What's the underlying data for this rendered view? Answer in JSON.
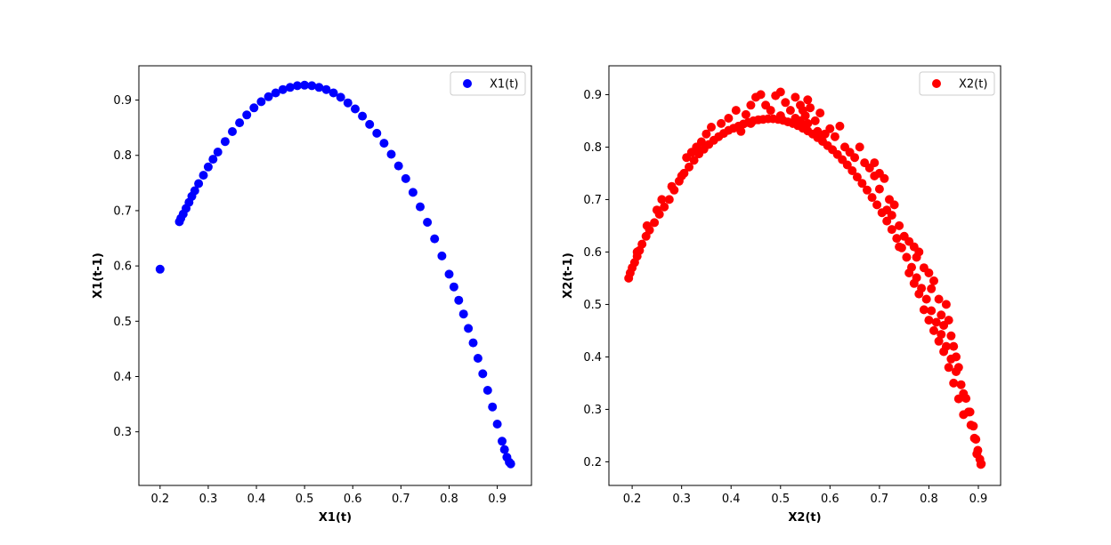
{
  "chart_data": [
    {
      "type": "scatter",
      "color": "#0000ff",
      "xlabel": "X1(t)",
      "ylabel": "X1(t-1)",
      "xlim": [
        0.156,
        0.971
      ],
      "ylim": [
        0.203,
        0.962
      ],
      "xticks": [
        "0.2",
        "0.3",
        "0.4",
        "0.5",
        "0.6",
        "0.7",
        "0.8",
        "0.9"
      ],
      "yticks": [
        "0.3",
        "0.4",
        "0.5",
        "0.6",
        "0.7",
        "0.8",
        "0.9"
      ],
      "legend": {
        "label": "X1(t)",
        "position": "upper right"
      },
      "grid": false,
      "series": [
        {
          "name": "X1(t)",
          "points": [
            [
              0.2,
              0.594
            ],
            [
              0.24,
              0.68
            ],
            [
              0.243,
              0.686
            ],
            [
              0.248,
              0.694
            ],
            [
              0.254,
              0.704
            ],
            [
              0.26,
              0.715
            ],
            [
              0.266,
              0.726
            ],
            [
              0.272,
              0.736
            ],
            [
              0.28,
              0.749
            ],
            [
              0.29,
              0.764
            ],
            [
              0.3,
              0.779
            ],
            [
              0.31,
              0.793
            ],
            [
              0.32,
              0.806
            ],
            [
              0.335,
              0.825
            ],
            [
              0.35,
              0.843
            ],
            [
              0.365,
              0.859
            ],
            [
              0.38,
              0.873
            ],
            [
              0.395,
              0.886
            ],
            [
              0.41,
              0.897
            ],
            [
              0.425,
              0.906
            ],
            [
              0.44,
              0.913
            ],
            [
              0.455,
              0.919
            ],
            [
              0.47,
              0.923
            ],
            [
              0.485,
              0.926
            ],
            [
              0.5,
              0.927
            ],
            [
              0.515,
              0.926
            ],
            [
              0.53,
              0.923
            ],
            [
              0.545,
              0.919
            ],
            [
              0.56,
              0.913
            ],
            [
              0.575,
              0.905
            ],
            [
              0.59,
              0.895
            ],
            [
              0.605,
              0.884
            ],
            [
              0.62,
              0.871
            ],
            [
              0.635,
              0.856
            ],
            [
              0.65,
              0.84
            ],
            [
              0.665,
              0.822
            ],
            [
              0.68,
              0.802
            ],
            [
              0.695,
              0.781
            ],
            [
              0.71,
              0.758
            ],
            [
              0.725,
              0.733
            ],
            [
              0.74,
              0.707
            ],
            [
              0.755,
              0.679
            ],
            [
              0.77,
              0.649
            ],
            [
              0.785,
              0.618
            ],
            [
              0.8,
              0.585
            ],
            [
              0.81,
              0.562
            ],
            [
              0.82,
              0.538
            ],
            [
              0.83,
              0.513
            ],
            [
              0.84,
              0.487
            ],
            [
              0.85,
              0.461
            ],
            [
              0.86,
              0.433
            ],
            [
              0.87,
              0.405
            ],
            [
              0.88,
              0.375
            ],
            [
              0.89,
              0.345
            ],
            [
              0.9,
              0.314
            ],
            [
              0.91,
              0.283
            ],
            [
              0.915,
              0.268
            ],
            [
              0.92,
              0.254
            ],
            [
              0.925,
              0.245
            ],
            [
              0.928,
              0.242
            ]
          ]
        }
      ]
    },
    {
      "type": "scatter",
      "color": "#ff0000",
      "xlabel": "X2(t)",
      "ylabel": "X2(t-1)",
      "xlim": [
        0.153,
        0.945
      ],
      "ylim": [
        0.155,
        0.955
      ],
      "xticks": [
        "0.2",
        "0.3",
        "0.4",
        "0.5",
        "0.6",
        "0.7",
        "0.8",
        "0.9"
      ],
      "yticks": [
        "0.2",
        "0.3",
        "0.4",
        "0.5",
        "0.6",
        "0.7",
        "0.8",
        "0.9"
      ],
      "legend": {
        "label": "X2(t)",
        "position": "upper right"
      },
      "grid": false,
      "series": [
        {
          "name": "X2(t)",
          "points": [
            [
              0.193,
              0.55
            ],
            [
              0.196,
              0.56
            ],
            [
              0.2,
              0.57
            ],
            [
              0.205,
              0.58
            ],
            [
              0.21,
              0.592
            ],
            [
              0.215,
              0.603
            ],
            [
              0.22,
              0.615
            ],
            [
              0.228,
              0.63
            ],
            [
              0.235,
              0.642
            ],
            [
              0.245,
              0.656
            ],
            [
              0.255,
              0.672
            ],
            [
              0.265,
              0.686
            ],
            [
              0.275,
              0.7
            ],
            [
              0.285,
              0.718
            ],
            [
              0.295,
              0.735
            ],
            [
              0.305,
              0.75
            ],
            [
              0.315,
              0.762
            ],
            [
              0.325,
              0.775
            ],
            [
              0.335,
              0.787
            ],
            [
              0.345,
              0.796
            ],
            [
              0.355,
              0.805
            ],
            [
              0.365,
              0.813
            ],
            [
              0.375,
              0.82
            ],
            [
              0.385,
              0.826
            ],
            [
              0.395,
              0.832
            ],
            [
              0.405,
              0.836
            ],
            [
              0.415,
              0.84
            ],
            [
              0.425,
              0.844
            ],
            [
              0.435,
              0.847
            ],
            [
              0.445,
              0.85
            ],
            [
              0.455,
              0.852
            ],
            [
              0.465,
              0.853
            ],
            [
              0.475,
              0.854
            ],
            [
              0.485,
              0.854
            ],
            [
              0.495,
              0.853
            ],
            [
              0.505,
              0.851
            ],
            [
              0.515,
              0.848
            ],
            [
              0.525,
              0.845
            ],
            [
              0.535,
              0.841
            ],
            [
              0.545,
              0.836
            ],
            [
              0.555,
              0.831
            ],
            [
              0.565,
              0.825
            ],
            [
              0.575,
              0.818
            ],
            [
              0.585,
              0.811
            ],
            [
              0.595,
              0.803
            ],
            [
              0.605,
              0.795
            ],
            [
              0.615,
              0.786
            ],
            [
              0.625,
              0.776
            ],
            [
              0.635,
              0.766
            ],
            [
              0.645,
              0.755
            ],
            [
              0.655,
              0.743
            ],
            [
              0.665,
              0.731
            ],
            [
              0.675,
              0.718
            ],
            [
              0.685,
              0.704
            ],
            [
              0.695,
              0.69
            ],
            [
              0.705,
              0.675
            ],
            [
              0.715,
              0.659
            ],
            [
              0.725,
              0.643
            ],
            [
              0.735,
              0.626
            ],
            [
              0.745,
              0.608
            ],
            [
              0.755,
              0.59
            ],
            [
              0.765,
              0.571
            ],
            [
              0.775,
              0.551
            ],
            [
              0.785,
              0.531
            ],
            [
              0.795,
              0.51
            ],
            [
              0.805,
              0.488
            ],
            [
              0.815,
              0.466
            ],
            [
              0.825,
              0.443
            ],
            [
              0.835,
              0.42
            ],
            [
              0.845,
              0.396
            ],
            [
              0.855,
              0.372
            ],
            [
              0.865,
              0.347
            ],
            [
              0.875,
              0.321
            ],
            [
              0.883,
              0.295
            ],
            [
              0.89,
              0.268
            ],
            [
              0.895,
              0.243
            ],
            [
              0.899,
              0.222
            ],
            [
              0.903,
              0.205
            ],
            [
              0.906,
              0.196
            ],
            [
              0.3,
              0.745
            ],
            [
              0.31,
              0.78
            ],
            [
              0.33,
              0.8
            ],
            [
              0.35,
              0.825
            ],
            [
              0.36,
              0.838
            ],
            [
              0.38,
              0.845
            ],
            [
              0.395,
              0.855
            ],
            [
              0.41,
              0.87
            ],
            [
              0.43,
              0.862
            ],
            [
              0.44,
              0.88
            ],
            [
              0.45,
              0.895
            ],
            [
              0.46,
              0.9
            ],
            [
              0.47,
              0.88
            ],
            [
              0.48,
              0.87
            ],
            [
              0.49,
              0.898
            ],
            [
              0.5,
              0.905
            ],
            [
              0.51,
              0.885
            ],
            [
              0.52,
              0.87
            ],
            [
              0.53,
              0.895
            ],
            [
              0.54,
              0.88
            ],
            [
              0.55,
              0.86
            ],
            [
              0.555,
              0.89
            ],
            [
              0.56,
              0.875
            ],
            [
              0.57,
              0.85
            ],
            [
              0.58,
              0.865
            ],
            [
              0.6,
              0.835
            ],
            [
              0.61,
              0.82
            ],
            [
              0.62,
              0.84
            ],
            [
              0.64,
              0.79
            ],
            [
              0.66,
              0.8
            ],
            [
              0.67,
              0.77
            ],
            [
              0.68,
              0.76
            ],
            [
              0.69,
              0.745
            ],
            [
              0.7,
              0.72
            ],
            [
              0.71,
              0.74
            ],
            [
              0.72,
              0.7
            ],
            [
              0.73,
              0.69
            ],
            [
              0.74,
              0.65
            ],
            [
              0.75,
              0.63
            ],
            [
              0.76,
              0.62
            ],
            [
              0.77,
              0.61
            ],
            [
              0.775,
              0.59
            ],
            [
              0.78,
              0.6
            ],
            [
              0.79,
              0.57
            ],
            [
              0.8,
              0.56
            ],
            [
              0.805,
              0.53
            ],
            [
              0.81,
              0.545
            ],
            [
              0.82,
              0.51
            ],
            [
              0.825,
              0.48
            ],
            [
              0.83,
              0.46
            ],
            [
              0.835,
              0.5
            ],
            [
              0.84,
              0.47
            ],
            [
              0.845,
              0.44
            ],
            [
              0.85,
              0.42
            ],
            [
              0.855,
              0.4
            ],
            [
              0.86,
              0.38
            ],
            [
              0.87,
              0.33
            ],
            [
              0.88,
              0.295
            ],
            [
              0.885,
              0.27
            ],
            [
              0.892,
              0.245
            ],
            [
              0.897,
              0.215
            ],
            [
              0.905,
              0.195
            ],
            [
              0.74,
              0.61
            ],
            [
              0.76,
              0.56
            ],
            [
              0.77,
              0.54
            ],
            [
              0.78,
              0.52
            ],
            [
              0.79,
              0.49
            ],
            [
              0.8,
              0.47
            ],
            [
              0.81,
              0.45
            ],
            [
              0.82,
              0.43
            ],
            [
              0.83,
              0.41
            ],
            [
              0.84,
              0.38
            ],
            [
              0.85,
              0.35
            ],
            [
              0.86,
              0.32
            ],
            [
              0.87,
              0.29
            ],
            [
              0.575,
              0.83
            ],
            [
              0.59,
              0.825
            ],
            [
              0.63,
              0.8
            ],
            [
              0.65,
              0.78
            ],
            [
              0.69,
              0.77
            ],
            [
              0.7,
              0.75
            ],
            [
              0.715,
              0.68
            ],
            [
              0.725,
              0.67
            ],
            [
              0.53,
              0.855
            ],
            [
              0.54,
              0.85
            ],
            [
              0.545,
              0.87
            ],
            [
              0.555,
              0.845
            ],
            [
              0.5,
              0.86
            ],
            [
              0.42,
              0.83
            ],
            [
              0.44,
              0.845
            ],
            [
              0.34,
              0.81
            ],
            [
              0.32,
              0.79
            ],
            [
              0.28,
              0.725
            ],
            [
              0.26,
              0.7
            ],
            [
              0.25,
              0.68
            ],
            [
              0.23,
              0.65
            ],
            [
              0.21,
              0.6
            ]
          ]
        }
      ]
    }
  ]
}
